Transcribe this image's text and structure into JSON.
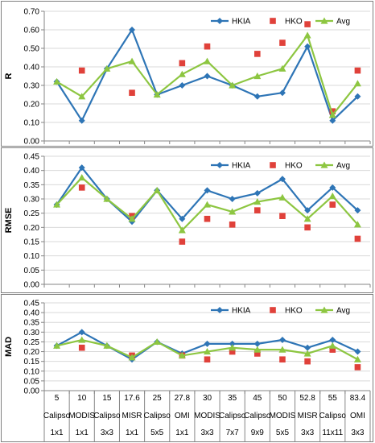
{
  "chart_data": [
    {
      "type": "line",
      "title": "",
      "xlabel": "",
      "ylabel": "R",
      "ylim": [
        0,
        0.7
      ],
      "ytick_step": 0.1,
      "ytick_decimals": 2,
      "grid": "horizontal",
      "legend": "top-right",
      "x": [
        "5",
        "10",
        "15",
        "17.6",
        "25",
        "27.8",
        "30",
        "35",
        "45",
        "50",
        "52.8",
        "55",
        "83.4"
      ],
      "series": [
        {
          "name": "HKIA",
          "color": "#2E75B6",
          "marker": "diamond",
          "line": true,
          "values": [
            0.32,
            0.11,
            0.39,
            0.6,
            0.25,
            0.3,
            0.35,
            0.3,
            0.24,
            0.26,
            0.51,
            0.11,
            0.24
          ]
        },
        {
          "name": "HKO",
          "color": "#E0413A",
          "marker": "square",
          "line": false,
          "values": [
            null,
            0.38,
            null,
            0.26,
            null,
            0.42,
            0.51,
            null,
            0.47,
            0.53,
            0.63,
            0.16,
            0.38
          ]
        },
        {
          "name": "Avg",
          "color": "#8DC641",
          "marker": "triangle",
          "line": true,
          "values": [
            0.32,
            0.24,
            0.39,
            0.43,
            0.25,
            0.36,
            0.43,
            0.3,
            0.35,
            0.39,
            0.57,
            0.14,
            0.31
          ]
        }
      ]
    },
    {
      "type": "line",
      "title": "",
      "xlabel": "",
      "ylabel": "RMSE",
      "ylim": [
        0,
        0.45
      ],
      "ytick_step": 0.05,
      "ytick_decimals": 2,
      "grid": "horizontal",
      "legend": "top-right",
      "x": [
        "5",
        "10",
        "15",
        "17.6",
        "25",
        "27.8",
        "30",
        "35",
        "45",
        "50",
        "52.8",
        "55",
        "83.4"
      ],
      "series": [
        {
          "name": "HKIA",
          "color": "#2E75B6",
          "marker": "diamond",
          "line": true,
          "values": [
            0.28,
            0.41,
            0.3,
            0.22,
            0.33,
            0.23,
            0.33,
            0.3,
            0.32,
            0.37,
            0.26,
            0.34,
            0.26
          ]
        },
        {
          "name": "HKO",
          "color": "#E0413A",
          "marker": "square",
          "line": false,
          "values": [
            null,
            0.34,
            null,
            0.24,
            null,
            0.15,
            0.23,
            0.21,
            0.26,
            0.24,
            0.2,
            0.28,
            0.16
          ]
        },
        {
          "name": "Avg",
          "color": "#8DC641",
          "marker": "triangle",
          "line": true,
          "values": [
            0.28,
            0.375,
            0.3,
            0.23,
            0.33,
            0.19,
            0.28,
            0.255,
            0.29,
            0.305,
            0.23,
            0.31,
            0.21
          ]
        }
      ]
    },
    {
      "type": "line",
      "title": "",
      "xlabel": "",
      "ylabel": "MAD",
      "ylim": [
        0,
        0.45
      ],
      "ytick_step": 0.05,
      "ytick_decimals": 2,
      "grid": "horizontal",
      "legend": "top-right",
      "x": [
        "5",
        "10",
        "15",
        "17.6",
        "25",
        "27.8",
        "30",
        "35",
        "45",
        "50",
        "52.8",
        "55",
        "83.4"
      ],
      "series": [
        {
          "name": "HKIA",
          "color": "#2E75B6",
          "marker": "diamond",
          "line": true,
          "values": [
            0.23,
            0.3,
            0.23,
            0.16,
            0.25,
            0.19,
            0.24,
            0.24,
            0.24,
            0.26,
            0.22,
            0.26,
            0.2
          ]
        },
        {
          "name": "HKO",
          "color": "#E0413A",
          "marker": "square",
          "line": false,
          "values": [
            null,
            0.22,
            null,
            0.18,
            null,
            0.18,
            0.16,
            0.2,
            0.19,
            0.16,
            0.15,
            0.21,
            0.12
          ]
        },
        {
          "name": "Avg",
          "color": "#8DC641",
          "marker": "triangle",
          "line": true,
          "values": [
            0.23,
            0.26,
            0.23,
            0.17,
            0.25,
            0.18,
            0.2,
            0.22,
            0.21,
            0.21,
            0.19,
            0.23,
            0.16
          ]
        }
      ]
    }
  ],
  "x_axis_table": {
    "distance_row": [
      "5",
      "10",
      "15",
      "17.6",
      "25",
      "27.8",
      "30",
      "35",
      "45",
      "50",
      "52.8",
      "55",
      "83.4"
    ],
    "sensor_row": [
      "Calipso",
      "MODIS",
      "Calipso",
      "MISR",
      "Calipso",
      "OMI",
      "MODIS",
      "Calipso",
      "Calipso",
      "MODIS",
      "MISR",
      "Calipso",
      "OMI"
    ],
    "resolution_row": [
      "1x1",
      "1x1",
      "3x3",
      "1x1",
      "5x5",
      "1x1",
      "3x3",
      "7x7",
      "9x9",
      "5x5",
      "3x3",
      "11x11",
      "3x3"
    ]
  },
  "colors": {
    "axis": "#868686",
    "grid": "#D9D9D9",
    "frame": "#7F7F7F"
  }
}
